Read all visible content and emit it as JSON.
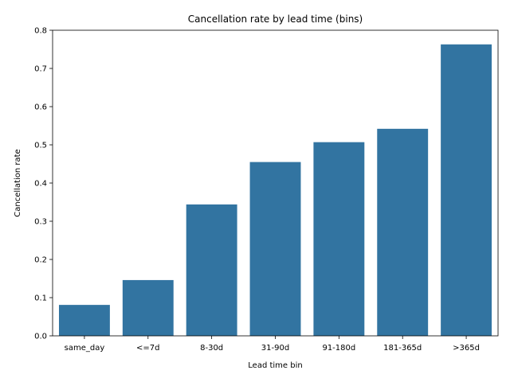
{
  "chart_data": {
    "type": "bar",
    "title": "Cancellation rate by lead time (bins)",
    "xlabel": "Lead time bin",
    "ylabel": "Cancellation rate",
    "categories": [
      "same_day",
      "<=7d",
      "8-30d",
      "31-90d",
      "91-180d",
      "181-365d",
      ">365d"
    ],
    "values": [
      0.081,
      0.146,
      0.344,
      0.455,
      0.507,
      0.542,
      0.763
    ],
    "ylim": [
      0,
      0.8
    ],
    "yticks": [
      0.0,
      0.1,
      0.2,
      0.3,
      0.4,
      0.5,
      0.6,
      0.7,
      0.8
    ],
    "ytick_labels": [
      "0.0",
      "0.1",
      "0.2",
      "0.3",
      "0.4",
      "0.5",
      "0.6",
      "0.7",
      "0.8"
    ],
    "bar_color": "#3274a1",
    "grid": false,
    "legend": "none"
  }
}
